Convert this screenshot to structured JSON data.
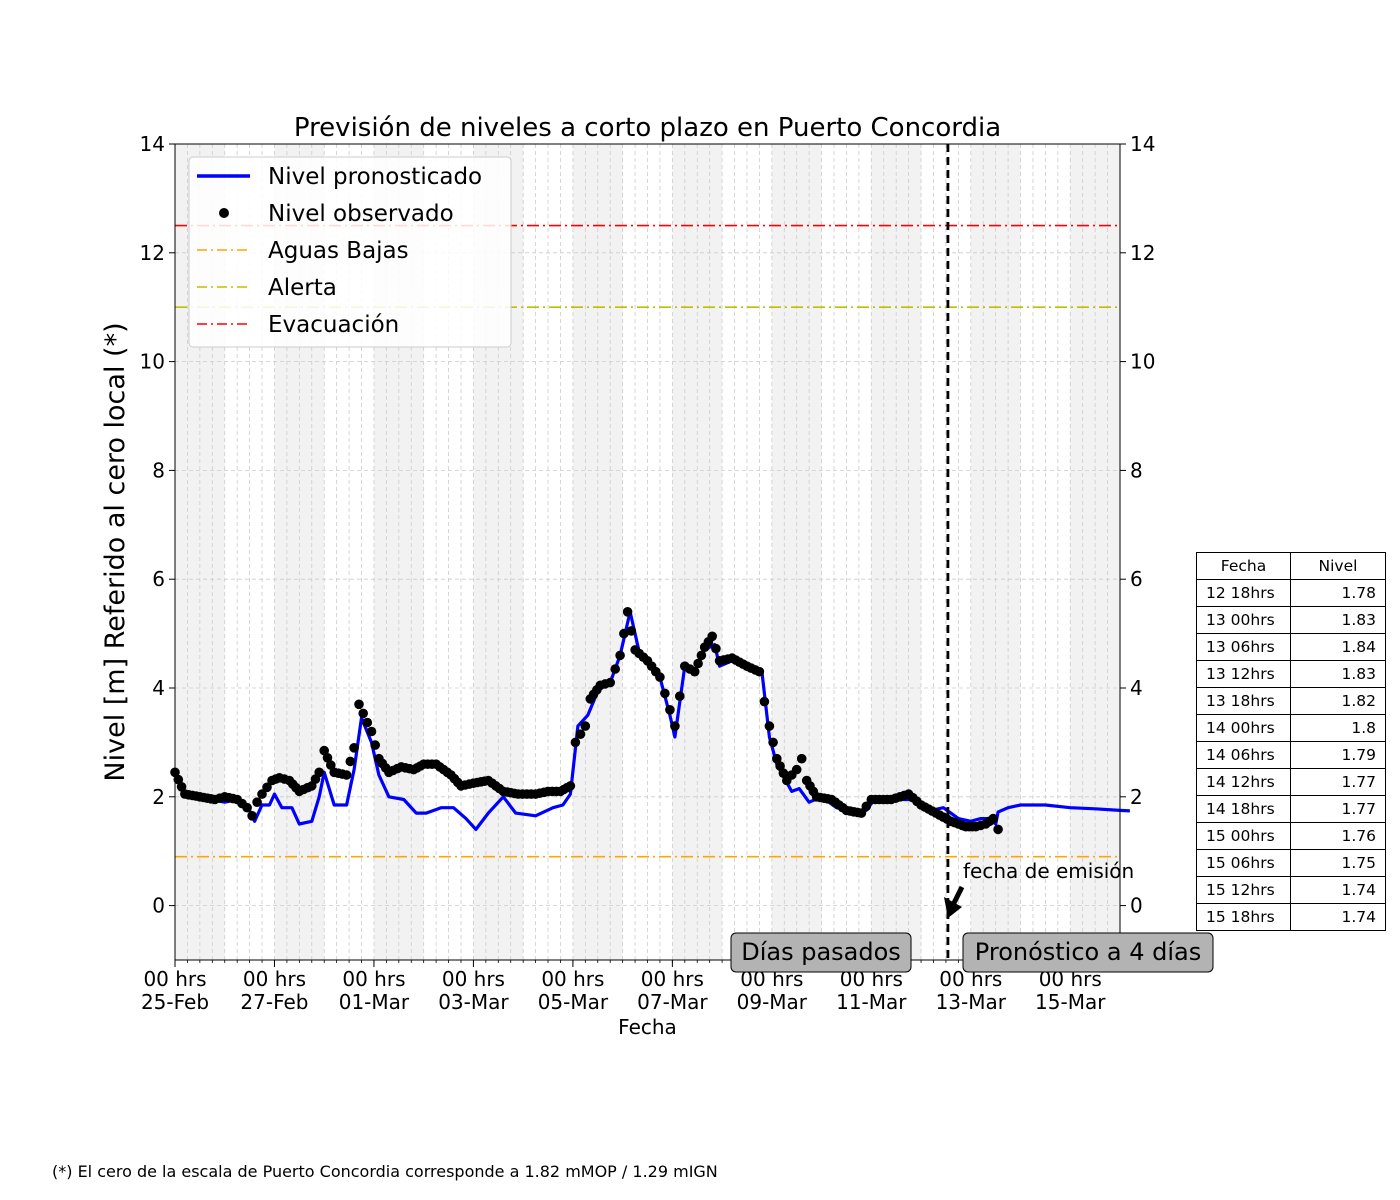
{
  "chart_data": {
    "type": "line",
    "title": "Previsión de niveles a corto plazo en Puerto Concordia",
    "xlabel": "Fecha",
    "ylabel": "Nivel [m] Referido al cero local (*)",
    "ylim": [
      -1,
      14
    ],
    "yticks": [
      0,
      2,
      4,
      6,
      8,
      10,
      12,
      14
    ],
    "x_range_days": [
      0,
      19
    ],
    "x_start": "25-Feb 00 hrs",
    "xticks": [
      {
        "day": 0,
        "line1": "00 hrs",
        "line2": "25-Feb"
      },
      {
        "day": 2,
        "line1": "00 hrs",
        "line2": "27-Feb"
      },
      {
        "day": 4,
        "line1": "00 hrs",
        "line2": "01-Mar"
      },
      {
        "day": 6,
        "line1": "00 hrs",
        "line2": "03-Mar"
      },
      {
        "day": 8,
        "line1": "00 hrs",
        "line2": "05-Mar"
      },
      {
        "day": 10,
        "line1": "00 hrs",
        "line2": "07-Mar"
      },
      {
        "day": 12,
        "line1": "00 hrs",
        "line2": "09-Mar"
      },
      {
        "day": 14,
        "line1": "00 hrs",
        "line2": "11-Mar"
      },
      {
        "day": 16,
        "line1": "00 hrs",
        "line2": "13-Mar"
      },
      {
        "day": 18,
        "line1": "00 hrs",
        "line2": "15-Mar"
      }
    ],
    "shaded_day_pairs": [
      [
        0,
        1
      ],
      [
        2,
        3
      ],
      [
        4,
        5
      ],
      [
        6,
        7
      ],
      [
        8,
        9
      ],
      [
        10,
        11
      ],
      [
        12,
        13
      ],
      [
        14,
        15
      ],
      [
        16,
        17
      ],
      [
        18,
        19
      ]
    ],
    "thresholds": [
      {
        "name": "Aguas Bajas",
        "value": 0.9,
        "color": "#ffa500"
      },
      {
        "name": "Alerta",
        "value": 11.0,
        "color": "#bfbf00"
      },
      {
        "name": "Evacuación",
        "value": 12.5,
        "color": "#ff0000"
      }
    ],
    "series": [
      {
        "name": "Nivel pronosticado",
        "color": "#0000ff",
        "points": [
          [
            0,
            2.4
          ],
          [
            0.25,
            2.0
          ],
          [
            0.5,
            1.95
          ],
          [
            0.75,
            1.95
          ],
          [
            1.0,
            1.9
          ],
          [
            1.25,
            1.95
          ],
          [
            1.5,
            1.75
          ],
          [
            1.6,
            1.55
          ],
          [
            1.75,
            1.85
          ],
          [
            1.9,
            1.85
          ],
          [
            2.0,
            2.05
          ],
          [
            2.15,
            1.8
          ],
          [
            2.35,
            1.8
          ],
          [
            2.5,
            1.5
          ],
          [
            2.75,
            1.55
          ],
          [
            2.9,
            2.0
          ],
          [
            3.0,
            2.45
          ],
          [
            3.2,
            1.85
          ],
          [
            3.45,
            1.85
          ],
          [
            3.6,
            2.5
          ],
          [
            3.75,
            3.45
          ],
          [
            3.95,
            3.0
          ],
          [
            4.1,
            2.4
          ],
          [
            4.3,
            2.0
          ],
          [
            4.6,
            1.95
          ],
          [
            4.85,
            1.7
          ],
          [
            5.05,
            1.7
          ],
          [
            5.35,
            1.8
          ],
          [
            5.6,
            1.8
          ],
          [
            5.85,
            1.6
          ],
          [
            6.05,
            1.4
          ],
          [
            6.3,
            1.7
          ],
          [
            6.6,
            2.0
          ],
          [
            6.85,
            1.7
          ],
          [
            7.25,
            1.65
          ],
          [
            7.6,
            1.8
          ],
          [
            7.8,
            1.85
          ],
          [
            7.95,
            2.05
          ],
          [
            8.1,
            3.3
          ],
          [
            8.3,
            3.5
          ],
          [
            8.55,
            4.05
          ],
          [
            8.75,
            4.1
          ],
          [
            8.95,
            4.6
          ],
          [
            9.15,
            5.4
          ],
          [
            9.35,
            4.6
          ],
          [
            9.55,
            4.4
          ],
          [
            9.75,
            4.2
          ],
          [
            9.95,
            3.5
          ],
          [
            10.05,
            3.1
          ],
          [
            10.25,
            4.4
          ],
          [
            10.45,
            4.3
          ],
          [
            10.65,
            4.7
          ],
          [
            10.85,
            4.8
          ],
          [
            10.95,
            4.4
          ],
          [
            11.2,
            4.5
          ],
          [
            11.45,
            4.4
          ],
          [
            11.65,
            4.35
          ],
          [
            11.8,
            4.3
          ],
          [
            11.95,
            3.1
          ],
          [
            12.1,
            2.6
          ],
          [
            12.4,
            2.1
          ],
          [
            12.55,
            2.15
          ],
          [
            12.75,
            1.9
          ],
          [
            13.0,
            2.0
          ],
          [
            13.3,
            1.8
          ],
          [
            13.6,
            1.75
          ],
          [
            13.9,
            1.75
          ],
          [
            14.1,
            2.0
          ],
          [
            14.5,
            1.95
          ],
          [
            14.85,
            1.95
          ],
          [
            15.2,
            1.75
          ],
          [
            15.45,
            1.8
          ],
          [
            15.75,
            1.6
          ],
          [
            16.0,
            1.55
          ],
          [
            16.2,
            1.6
          ],
          [
            16.35,
            1.6
          ],
          [
            16.5,
            1.5
          ],
          [
            16.55,
            1.72
          ],
          [
            16.75,
            1.8
          ],
          [
            17.0,
            1.85
          ],
          [
            17.5,
            1.85
          ],
          [
            18.0,
            1.8
          ],
          [
            18.5,
            1.78
          ],
          [
            19.0,
            1.75
          ],
          [
            19.2,
            1.74
          ]
        ]
      },
      {
        "name": "Nivel observado",
        "color": "#000000",
        "points": [
          [
            0,
            2.45
          ],
          [
            0.2,
            2.05
          ],
          [
            0.5,
            2.0
          ],
          [
            0.8,
            1.95
          ],
          [
            1.0,
            2.0
          ],
          [
            1.25,
            1.95
          ],
          [
            1.45,
            1.8
          ],
          [
            1.55,
            1.65
          ],
          [
            1.65,
            1.9
          ],
          [
            1.75,
            2.05
          ],
          [
            1.95,
            2.3
          ],
          [
            2.1,
            2.35
          ],
          [
            2.3,
            2.3
          ],
          [
            2.5,
            2.1
          ],
          [
            2.75,
            2.2
          ],
          [
            2.9,
            2.45
          ],
          [
            3.0,
            2.85
          ],
          [
            3.2,
            2.45
          ],
          [
            3.45,
            2.4
          ],
          [
            3.6,
            2.9
          ],
          [
            3.7,
            3.7
          ],
          [
            3.95,
            3.2
          ],
          [
            4.1,
            2.7
          ],
          [
            4.3,
            2.45
          ],
          [
            4.55,
            2.55
          ],
          [
            4.8,
            2.5
          ],
          [
            5.0,
            2.6
          ],
          [
            5.25,
            2.6
          ],
          [
            5.55,
            2.4
          ],
          [
            5.75,
            2.2
          ],
          [
            6.0,
            2.25
          ],
          [
            6.3,
            2.3
          ],
          [
            6.6,
            2.1
          ],
          [
            6.9,
            2.05
          ],
          [
            7.25,
            2.05
          ],
          [
            7.5,
            2.1
          ],
          [
            7.75,
            2.1
          ],
          [
            7.95,
            2.2
          ],
          [
            8.05,
            3.0
          ],
          [
            8.25,
            3.3
          ],
          [
            8.35,
            3.8
          ],
          [
            8.55,
            4.05
          ],
          [
            8.75,
            4.1
          ],
          [
            8.95,
            4.6
          ],
          [
            9.1,
            5.4
          ],
          [
            9.25,
            4.7
          ],
          [
            9.5,
            4.5
          ],
          [
            9.75,
            4.2
          ],
          [
            9.95,
            3.6
          ],
          [
            10.05,
            3.3
          ],
          [
            10.25,
            4.4
          ],
          [
            10.45,
            4.3
          ],
          [
            10.65,
            4.75
          ],
          [
            10.8,
            4.95
          ],
          [
            10.95,
            4.5
          ],
          [
            11.2,
            4.55
          ],
          [
            11.5,
            4.4
          ],
          [
            11.75,
            4.3
          ],
          [
            11.85,
            3.75
          ],
          [
            11.95,
            3.3
          ],
          [
            12.1,
            2.7
          ],
          [
            12.3,
            2.3
          ],
          [
            12.5,
            2.5
          ],
          [
            12.6,
            2.7
          ],
          [
            12.7,
            2.3
          ],
          [
            12.9,
            2.0
          ],
          [
            13.2,
            1.95
          ],
          [
            13.5,
            1.75
          ],
          [
            13.8,
            1.7
          ],
          [
            14.0,
            1.95
          ],
          [
            14.4,
            1.95
          ],
          [
            14.75,
            2.05
          ],
          [
            15.0,
            1.85
          ],
          [
            15.3,
            1.7
          ],
          [
            15.6,
            1.55
          ],
          [
            15.9,
            1.45
          ],
          [
            16.1,
            1.45
          ],
          [
            16.3,
            1.5
          ],
          [
            16.45,
            1.6
          ],
          [
            16.55,
            1.4
          ]
        ]
      }
    ],
    "emission": {
      "day": 15.54,
      "label": "fecha de emisión"
    },
    "region_labels": {
      "past": "Días pasados",
      "forecast": "Pronóstico a 4 días"
    },
    "legend_location": "upper-left"
  },
  "table": {
    "headers": [
      "Fecha",
      "Nivel"
    ],
    "rows": [
      [
        "12 18hrs",
        "1.78"
      ],
      [
        "13 00hrs",
        "1.83"
      ],
      [
        "13 06hrs",
        "1.84"
      ],
      [
        "13 12hrs",
        "1.83"
      ],
      [
        "13 18hrs",
        "1.82"
      ],
      [
        "14 00hrs",
        "1.8"
      ],
      [
        "14 06hrs",
        "1.79"
      ],
      [
        "14 12hrs",
        "1.77"
      ],
      [
        "14 18hrs",
        "1.77"
      ],
      [
        "15 00hrs",
        "1.76"
      ],
      [
        "15 06hrs",
        "1.75"
      ],
      [
        "15 12hrs",
        "1.74"
      ],
      [
        "15 18hrs",
        "1.74"
      ]
    ]
  },
  "footnote": "(*) El cero de la escala de Puerto Concordia corresponde a 1.82 mMOP / 1.29 mIGN"
}
